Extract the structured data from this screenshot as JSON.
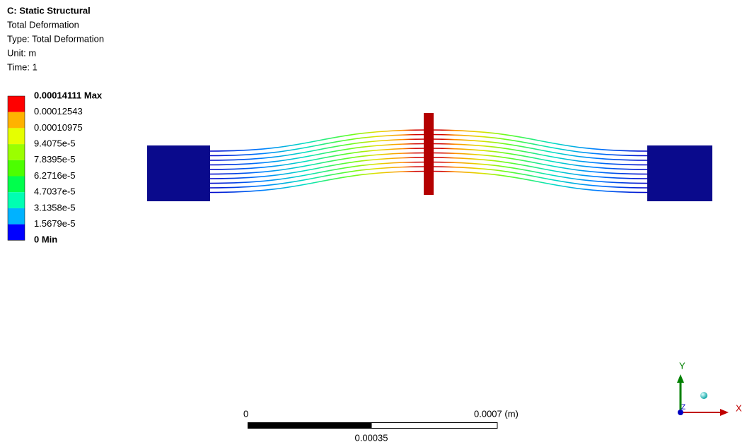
{
  "header": {
    "title": "C: Static Structural",
    "lines": [
      "Total Deformation",
      "Type: Total Deformation",
      "Unit: m",
      "Time: 1"
    ]
  },
  "legend": {
    "labels": [
      "0.00014111 Max",
      "0.00012543",
      "0.00010975",
      "9.4075e-5",
      "7.8395e-5",
      "6.2716e-5",
      "4.7037e-5",
      "3.1358e-5",
      "1.5679e-5",
      "0 Min"
    ],
    "colors": [
      "#ff0000",
      "#ffb200",
      "#e6ff00",
      "#9bff00",
      "#4cff00",
      "#00ff4c",
      "#00ffb2",
      "#00b2ff",
      "#0000ff"
    ]
  },
  "scale_bar": {
    "start": "0",
    "end": "0.0007 (m)",
    "mid": "0.00035"
  },
  "triad": {
    "x": "X",
    "y": "Y",
    "z": "Z"
  }
}
